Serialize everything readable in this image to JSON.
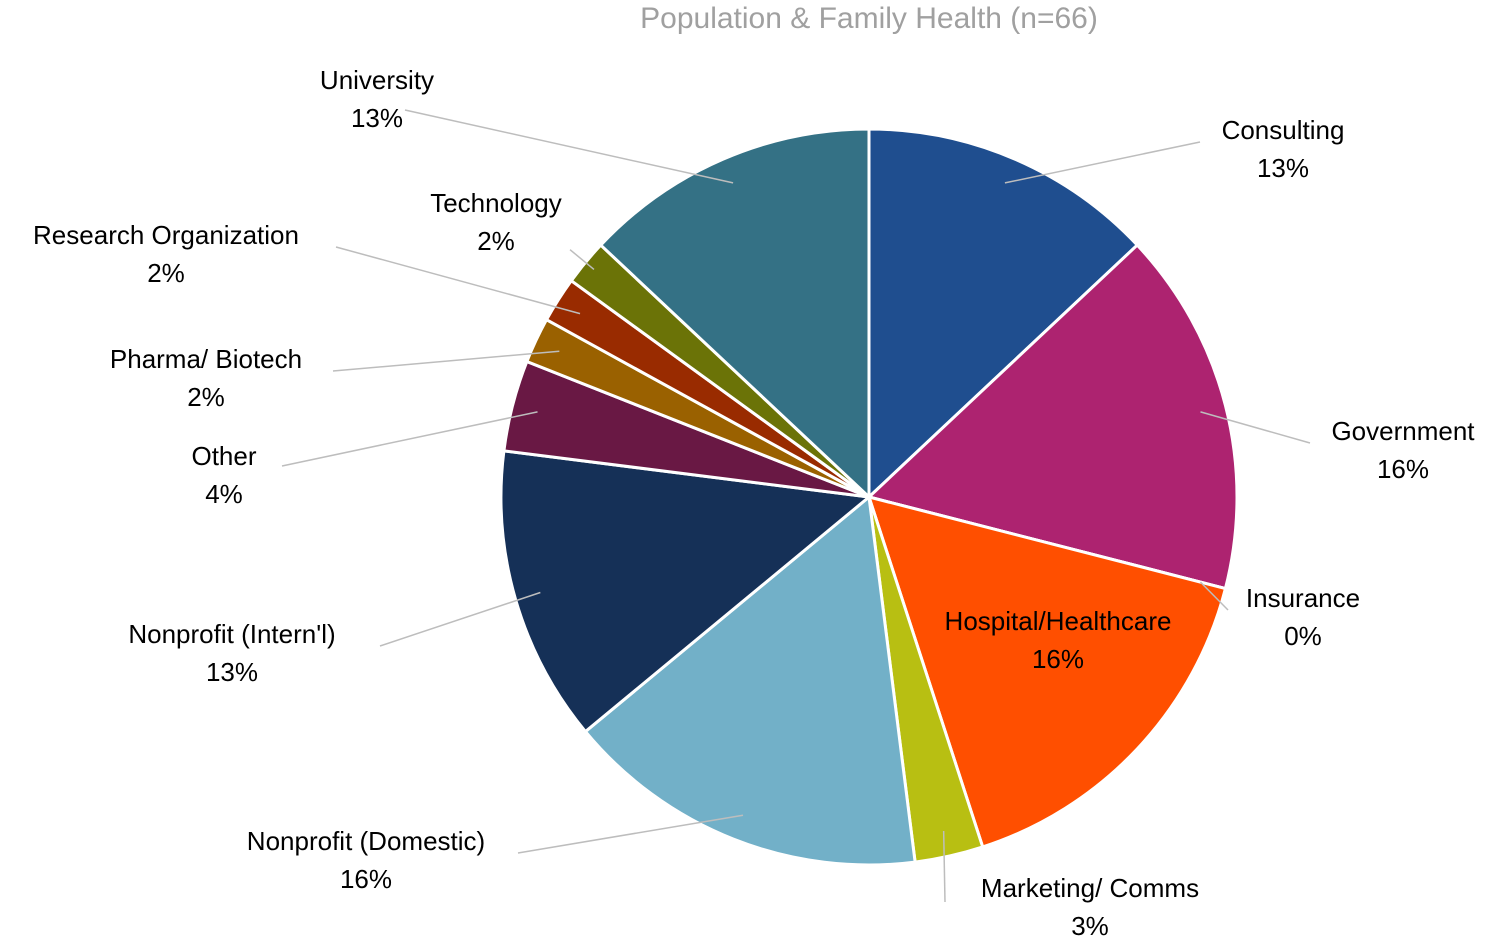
{
  "chart_data": {
    "type": "pie",
    "title": "Population & Family Health (n=66)",
    "categories": [
      "Consulting",
      "Government",
      "Insurance",
      "Hospital/Healthcare",
      "Marketing/ Comms",
      "Nonprofit (Domestic)",
      "Nonprofit (Intern'l)",
      "Other",
      "Pharma/ Biotech",
      "Research Organization",
      "Technology",
      "University"
    ],
    "values": [
      13,
      16,
      0,
      16,
      3,
      16,
      13,
      4,
      2,
      2,
      2,
      13
    ],
    "value_labels": [
      "13%",
      "16%",
      "0%",
      "16%",
      "3%",
      "16%",
      "13%",
      "4%",
      "2%",
      "2%",
      "2%",
      "13%"
    ],
    "colors": [
      "#1f4e8f",
      "#ad2370",
      "#888888",
      "#ff4f00",
      "#b8bf12",
      "#72b0c8",
      "#153057",
      "#691844",
      "#9a6100",
      "#992b00",
      "#6b7307",
      "#347185"
    ]
  }
}
